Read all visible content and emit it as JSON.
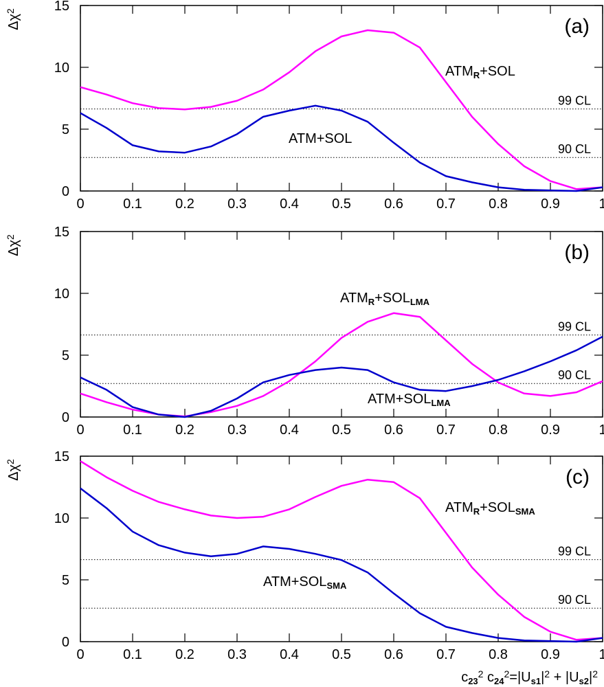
{
  "chart_data": [
    {
      "type": "line",
      "panel_label": "(a)",
      "y_label": [
        {
          "text": "Δχ"
        },
        {
          "text": "2",
          "sup": true
        }
      ],
      "x": [
        0,
        0.05,
        0.1,
        0.15,
        0.2,
        0.25,
        0.3,
        0.35,
        0.4,
        0.45,
        0.5,
        0.55,
        0.6,
        0.65,
        0.7,
        0.75,
        0.8,
        0.85,
        0.9,
        0.95,
        1
      ],
      "xlim": [
        0,
        1
      ],
      "xticks": [
        0,
        0.1,
        0.2,
        0.3,
        0.4,
        0.5,
        0.6,
        0.7,
        0.8,
        0.9,
        1
      ],
      "ylim": [
        0,
        15
      ],
      "yticks": [
        0,
        5,
        10,
        15
      ],
      "hlines": [
        {
          "value": 6.63,
          "label": "99 CL"
        },
        {
          "value": 2.71,
          "label": "90 CL"
        }
      ],
      "series": [
        {
          "name": [
            {
              "text": "ATM"
            },
            {
              "text": "R",
              "sub": true
            },
            {
              "text": "+SOL"
            }
          ],
          "color": "#ff00ff",
          "values": [
            8.4,
            7.8,
            7.1,
            6.7,
            6.6,
            6.8,
            7.3,
            8.2,
            9.6,
            11.3,
            12.5,
            13.0,
            12.8,
            11.6,
            8.8,
            6.0,
            3.8,
            2.0,
            0.8,
            0.15,
            0.3
          ]
        },
        {
          "name": [
            {
              "text": "ATM+SOL"
            }
          ],
          "color": "#0000cc",
          "values": [
            6.3,
            5.1,
            3.7,
            3.2,
            3.1,
            3.6,
            4.6,
            6.0,
            6.5,
            6.9,
            6.5,
            5.6,
            3.9,
            2.3,
            1.2,
            0.7,
            0.3,
            0.1,
            0.05,
            0,
            0.3
          ]
        }
      ]
    },
    {
      "type": "line",
      "panel_label": "(b)",
      "y_label": [
        {
          "text": "Δχ"
        },
        {
          "text": "2",
          "sup": true
        }
      ],
      "x": [
        0,
        0.05,
        0.1,
        0.15,
        0.2,
        0.25,
        0.3,
        0.35,
        0.4,
        0.45,
        0.5,
        0.55,
        0.6,
        0.65,
        0.7,
        0.75,
        0.8,
        0.85,
        0.9,
        0.95,
        1
      ],
      "xlim": [
        0,
        1
      ],
      "xticks": [
        0,
        0.1,
        0.2,
        0.3,
        0.4,
        0.5,
        0.6,
        0.7,
        0.8,
        0.9,
        1
      ],
      "ylim": [
        0,
        15
      ],
      "yticks": [
        0,
        5,
        10,
        15
      ],
      "hlines": [
        {
          "value": 6.63,
          "label": "99 CL"
        },
        {
          "value": 2.71,
          "label": "90 CL"
        }
      ],
      "series": [
        {
          "name": [
            {
              "text": "ATM"
            },
            {
              "text": "R",
              "sub": true
            },
            {
              "text": "+SOL"
            },
            {
              "text": "LMA",
              "sub": true
            }
          ],
          "color": "#ff00ff",
          "values": [
            1.9,
            1.2,
            0.6,
            0.2,
            0.05,
            0.4,
            0.9,
            1.7,
            2.9,
            4.5,
            6.4,
            7.7,
            8.4,
            8.1,
            6.2,
            4.3,
            2.8,
            1.9,
            1.7,
            2.0,
            2.9
          ]
        },
        {
          "name": [
            {
              "text": "ATM+SOL"
            },
            {
              "text": "LMA",
              "sub": true
            }
          ],
          "color": "#0000cc",
          "values": [
            3.2,
            2.2,
            0.8,
            0.2,
            0,
            0.5,
            1.5,
            2.8,
            3.4,
            3.8,
            4.0,
            3.8,
            2.8,
            2.2,
            2.1,
            2.5,
            3.0,
            3.7,
            4.5,
            5.4,
            6.5
          ]
        }
      ]
    },
    {
      "type": "line",
      "panel_label": "(c)",
      "y_label": [
        {
          "text": "Δχ"
        },
        {
          "text": "2",
          "sup": true
        }
      ],
      "x_label": [
        {
          "text": "c"
        },
        {
          "text": "23",
          "sub": true
        },
        {
          "text": "2",
          "sup": true
        },
        {
          "text": " c"
        },
        {
          "text": "24",
          "sub": true
        },
        {
          "text": "2",
          "sup": true
        },
        {
          "text": "=|U"
        },
        {
          "text": "s1",
          "sub": true
        },
        {
          "text": "|"
        },
        {
          "text": "2",
          "sup": true
        },
        {
          "text": " + |U"
        },
        {
          "text": "s2",
          "sub": true
        },
        {
          "text": "|"
        },
        {
          "text": "2",
          "sup": true
        }
      ],
      "x": [
        0,
        0.05,
        0.1,
        0.15,
        0.2,
        0.25,
        0.3,
        0.35,
        0.4,
        0.45,
        0.5,
        0.55,
        0.6,
        0.65,
        0.7,
        0.75,
        0.8,
        0.85,
        0.9,
        0.95,
        1
      ],
      "xlim": [
        0,
        1
      ],
      "xticks": [
        0,
        0.1,
        0.2,
        0.3,
        0.4,
        0.5,
        0.6,
        0.7,
        0.8,
        0.9,
        1
      ],
      "ylim": [
        0,
        15
      ],
      "yticks": [
        0,
        5,
        10,
        15
      ],
      "hlines": [
        {
          "value": 6.63,
          "label": "99 CL"
        },
        {
          "value": 2.71,
          "label": "90 CL"
        }
      ],
      "series": [
        {
          "name": [
            {
              "text": "ATM"
            },
            {
              "text": "R",
              "sub": true
            },
            {
              "text": "+SOL"
            },
            {
              "text": "SMA",
              "sub": true
            }
          ],
          "color": "#ff00ff",
          "values": [
            14.6,
            13.3,
            12.2,
            11.3,
            10.7,
            10.2,
            10.0,
            10.1,
            10.7,
            11.7,
            12.6,
            13.1,
            12.9,
            11.6,
            8.8,
            6.0,
            3.8,
            2.0,
            0.8,
            0.15,
            0.3
          ]
        },
        {
          "name": [
            {
              "text": "ATM+SOL"
            },
            {
              "text": "SMA",
              "sub": true
            }
          ],
          "color": "#0000cc",
          "values": [
            12.4,
            10.8,
            8.9,
            7.8,
            7.2,
            6.9,
            7.1,
            7.7,
            7.5,
            7.1,
            6.6,
            5.6,
            3.9,
            2.3,
            1.2,
            0.7,
            0.3,
            0.1,
            0.05,
            0,
            0.3
          ]
        }
      ]
    }
  ]
}
